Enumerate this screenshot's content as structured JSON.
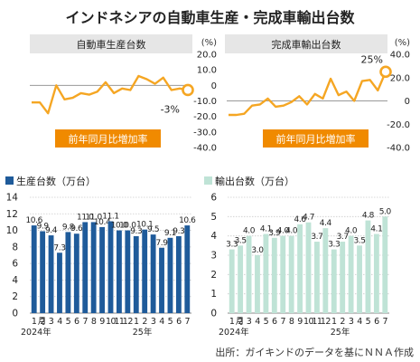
{
  "title": "インドネシアの自動車生産・完成車輸出台数",
  "source": "出所：ガイキンドのデータを基にＮＮＡ作成",
  "colors": {
    "orange": "#F5A623",
    "label_bg": "#F08A00",
    "panel_header": "#E6E6E6",
    "production_bar": "#1F5B9A",
    "export_bar": "#BFE3D6"
  },
  "chart_data": [
    {
      "type": "line",
      "title": "自動車生産台数",
      "unit": "(%)",
      "annotation": "前年同月比増加率",
      "end_label": "-3%",
      "ylim": [
        -40,
        20
      ],
      "yticks": [
        "20.0",
        "10.0",
        "0",
        "-10.0",
        "-20.0",
        "-30.0",
        "-40.0"
      ],
      "values": [
        -11,
        -11,
        -18,
        0,
        -9,
        -8,
        -5,
        -6,
        -4,
        2,
        -5,
        -2,
        -3,
        6,
        4,
        1,
        5,
        -3,
        -2,
        -3
      ]
    },
    {
      "type": "line",
      "title": "完成車輸出台数",
      "unit": "(%)",
      "annotation": "前年同月比増加率",
      "end_label": "25%",
      "ylim": [
        -40,
        40
      ],
      "yticks": [
        "40.0",
        "20.0",
        "0",
        "-20.0",
        "-40.0"
      ],
      "values": [
        -12,
        -12,
        -11,
        -4,
        -3,
        2,
        -5,
        -4,
        -1,
        4,
        -3,
        6,
        2,
        19,
        5,
        8,
        0,
        17,
        18,
        9,
        25
      ]
    },
    {
      "type": "bar",
      "title": "生産台数（万台）",
      "ylim": [
        0,
        14
      ],
      "yticks": [
        "14",
        "12",
        "10",
        "8",
        "6",
        "4",
        "2",
        "0"
      ],
      "categories": [
        "1",
        "2",
        "3",
        "4",
        "5",
        "6",
        "7",
        "8",
        "9",
        "10",
        "11",
        "12",
        "1",
        "2",
        "3",
        "4",
        "5",
        "6",
        "7"
      ],
      "values": [
        10.6,
        9.9,
        9.4,
        7.3,
        9.8,
        9.6,
        11.0,
        11.0,
        10.4,
        11.1,
        10.0,
        10.0,
        9.3,
        10.1,
        9.5,
        7.9,
        9.1,
        9.3,
        10.6
      ],
      "labels": [
        "10.6",
        "9.9",
        "9.4",
        "7.3",
        "9.8",
        "9.6",
        "11.0",
        "11.0",
        "10.4",
        "11.1",
        "10.0",
        "10.0",
        "9.3",
        "10.1",
        "9.5",
        "7.9",
        "9.1",
        "9.3",
        "10.6"
      ],
      "x_tick_labels": [
        "1",
        "2",
        "3",
        "4",
        "5",
        "6",
        "7",
        "8",
        "9",
        "10",
        "11",
        "12",
        "1",
        "2",
        "3",
        "4",
        "5",
        "6",
        "7"
      ],
      "x_axis_note_1": "月",
      "year_labels": [
        "2024年",
        "25年"
      ]
    },
    {
      "type": "bar",
      "title": "輸出台数（万台）",
      "ylim": [
        0,
        6
      ],
      "yticks": [
        "6",
        "5",
        "4",
        "3",
        "2",
        "1",
        "0"
      ],
      "categories": [
        "1",
        "2",
        "3",
        "4",
        "5",
        "6",
        "7",
        "8",
        "9",
        "10",
        "11",
        "12",
        "1",
        "2",
        "3",
        "4",
        "5",
        "6",
        "7"
      ],
      "values": [
        3.3,
        3.5,
        4.0,
        3.0,
        4.1,
        3.9,
        4.0,
        4.0,
        4.6,
        4.7,
        3.7,
        4.4,
        3.3,
        3.7,
        4.0,
        3.5,
        4.8,
        4.1,
        5.0
      ],
      "labels": [
        "3.3",
        "3.5",
        "4.0",
        "3.0",
        "4.1",
        "3.9",
        "4.0",
        "4.0",
        "4.6",
        "4.7",
        "3.7",
        "4.4",
        "3.3",
        "3.7",
        "4.0",
        "3.5",
        "4.8",
        "4.1",
        "5.0"
      ],
      "x_tick_labels": [
        "1",
        "2",
        "3",
        "4",
        "5",
        "6",
        "7",
        "8",
        "9",
        "10",
        "11",
        "12",
        "1",
        "2",
        "3",
        "4",
        "5",
        "6",
        "7"
      ],
      "x_axis_note_1": "月",
      "year_labels": [
        "2024年",
        "25年"
      ]
    }
  ]
}
